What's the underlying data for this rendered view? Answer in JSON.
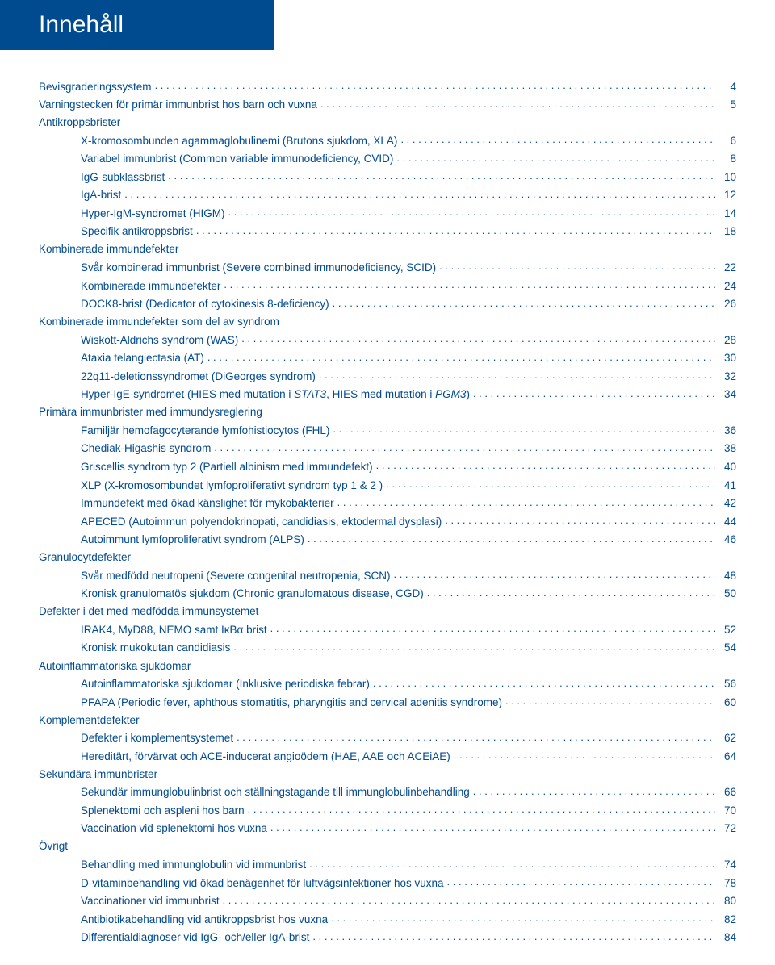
{
  "header": "Innehåll",
  "colors": {
    "brand": "#004a8f",
    "bg": "#ffffff",
    "white": "#ffffff"
  },
  "toc": [
    {
      "type": "item",
      "indent": 1,
      "label": "Bevisgraderingssystem",
      "page": 4
    },
    {
      "type": "item",
      "indent": 1,
      "label": "Varningstecken för primär immunbrist hos barn och vuxna",
      "page": 5
    },
    {
      "type": "section",
      "indent": 1,
      "label": "Antikroppsbrister"
    },
    {
      "type": "item",
      "indent": 2,
      "label": "X-kromosombunden agammaglobulinemi (Brutons sjukdom, XLA)",
      "page": 6
    },
    {
      "type": "item",
      "indent": 2,
      "label": "Variabel immunbrist (Common variable immunodeficiency, CVID)",
      "page": 8
    },
    {
      "type": "item",
      "indent": 2,
      "label": "IgG-subklassbrist",
      "page": 10
    },
    {
      "type": "item",
      "indent": 2,
      "label": "IgA-brist",
      "page": 12
    },
    {
      "type": "item",
      "indent": 2,
      "label": "Hyper-IgM-syndromet (HIGM)",
      "page": 14
    },
    {
      "type": "item",
      "indent": 2,
      "label": "Specifik antikroppsbrist",
      "page": 18
    },
    {
      "type": "section",
      "indent": 1,
      "label": "Kombinerade immundefekter"
    },
    {
      "type": "item",
      "indent": 2,
      "label": "Svår kombinerad immunbrist (Severe combined immunodeficiency, SCID)",
      "page": 22
    },
    {
      "type": "item",
      "indent": 2,
      "label": "Kombinerade immundefekter",
      "page": 24
    },
    {
      "type": "item",
      "indent": 2,
      "label": "DOCK8-brist (Dedicator of cytokinesis 8-deficiency)",
      "page": 26
    },
    {
      "type": "section",
      "indent": 1,
      "label": "Kombinerade immundefekter som del av syndrom"
    },
    {
      "type": "item",
      "indent": 2,
      "label": "Wiskott-Aldrichs syndrom (WAS)",
      "page": 28
    },
    {
      "type": "item",
      "indent": 2,
      "label": "Ataxia telangiectasia (AT)",
      "page": 30
    },
    {
      "type": "item",
      "indent": 2,
      "label": "22q11-deletionssyndromet (DiGeorges syndrom)",
      "page": 32
    },
    {
      "type": "item",
      "indent": 2,
      "label_html": "Hyper-IgE-syndromet (HIES med mutation i <span class='italic'>STAT3</span>, HIES med mutation i <span class='italic'>PGM3</span>)",
      "page": 34
    },
    {
      "type": "section",
      "indent": 1,
      "label": "Primära immunbrister med immundysreglering"
    },
    {
      "type": "item",
      "indent": 2,
      "label": "Familjär hemofagocyterande lymfohistiocytos (FHL)",
      "page": 36
    },
    {
      "type": "item",
      "indent": 2,
      "label": "Chediak-Higashis syndrom",
      "page": 38
    },
    {
      "type": "item",
      "indent": 2,
      "label": "Griscellis syndrom typ 2 (Partiell albinism med immundefekt)",
      "page": 40
    },
    {
      "type": "item",
      "indent": 2,
      "label": "XLP (X-kromosombundet lymfoproliferativt syndrom typ 1 & 2 )",
      "page": 41
    },
    {
      "type": "item",
      "indent": 2,
      "label": "Immundefekt med ökad känslighet för mykobakterier",
      "page": 42
    },
    {
      "type": "item",
      "indent": 2,
      "label": "APECED (Autoimmun polyendokrinopati, candidiasis, ektodermal dysplasi)",
      "page": 44
    },
    {
      "type": "item",
      "indent": 2,
      "label": "Autoimmunt lymfoproliferativt syndrom (ALPS)",
      "page": 46
    },
    {
      "type": "section",
      "indent": 1,
      "label": "Granulocytdefekter"
    },
    {
      "type": "item",
      "indent": 2,
      "label": "Svår medfödd neutropeni (Severe congenital neutropenia, SCN)",
      "page": 48
    },
    {
      "type": "item",
      "indent": 2,
      "label": "Kronisk granulomatös sjukdom (Chronic granulomatous disease, CGD)",
      "page": 50
    },
    {
      "type": "section",
      "indent": 1,
      "label": "Defekter i det med medfödda immunsystemet"
    },
    {
      "type": "item",
      "indent": 2,
      "label": "IRAK4, MyD88, NEMO samt IκBα brist",
      "page": 52
    },
    {
      "type": "item",
      "indent": 2,
      "label": "Kronisk mukokutan candidiasis",
      "page": 54
    },
    {
      "type": "section",
      "indent": 1,
      "label": "Autoinflammatoriska sjukdomar"
    },
    {
      "type": "item",
      "indent": 2,
      "label": "Autoinflammatoriska sjukdomar (Inklusive periodiska febrar)",
      "page": 56
    },
    {
      "type": "item",
      "indent": 2,
      "label": "PFAPA (Periodic fever, aphthous stomatitis, pharyngitis and cervical adenitis syndrome)",
      "page": 60
    },
    {
      "type": "section",
      "indent": 1,
      "label": "Komplementdefekter"
    },
    {
      "type": "item",
      "indent": 2,
      "label": "Defekter i komplementsystemet",
      "page": 62
    },
    {
      "type": "item",
      "indent": 2,
      "label": "Hereditärt, förvärvat och ACE-inducerat angioödem (HAE, AAE och ACEiAE)",
      "page": 64
    },
    {
      "type": "section",
      "indent": 1,
      "label": "Sekundära immunbrister"
    },
    {
      "type": "item",
      "indent": 2,
      "label": "Sekundär immunglobulinbrist och ställningstagande till immunglobulinbehandling",
      "page": 66
    },
    {
      "type": "item",
      "indent": 2,
      "label": "Splenektomi och aspleni hos barn",
      "page": 70
    },
    {
      "type": "item",
      "indent": 2,
      "label": "Vaccination vid splenektomi hos vuxna",
      "page": 72
    },
    {
      "type": "section",
      "indent": 1,
      "label": "Övrigt"
    },
    {
      "type": "item",
      "indent": 2,
      "label": "Behandling med immunglobulin vid immunbrist",
      "page": 74
    },
    {
      "type": "item",
      "indent": 2,
      "label": "D-vitaminbehandling vid ökad benägenhet för luftvägsinfektioner hos vuxna",
      "page": 78
    },
    {
      "type": "item",
      "indent": 2,
      "label": "Vaccinationer vid immunbrist",
      "page": 80
    },
    {
      "type": "item",
      "indent": 2,
      "label": "Antibiotikabehandling vid antikroppsbrist hos vuxna",
      "page": 82
    },
    {
      "type": "item",
      "indent": 2,
      "label": "Differentialdiagnoser vid IgG- och/eller IgA-brist",
      "page": 84
    }
  ]
}
